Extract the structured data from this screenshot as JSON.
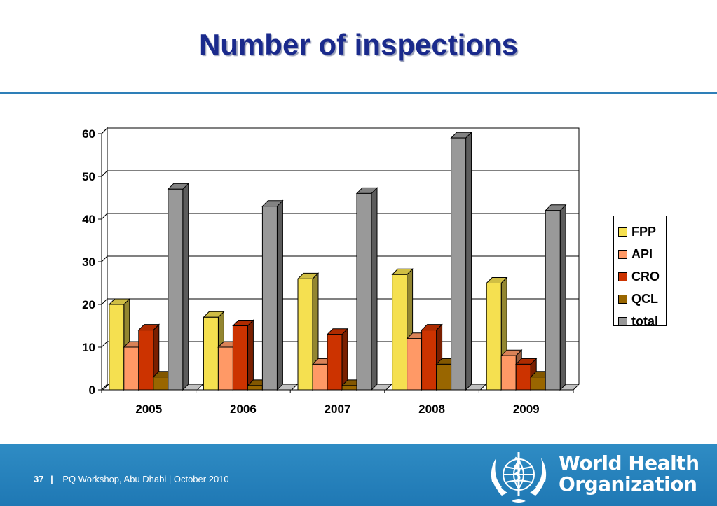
{
  "title": "Number of inspections",
  "chart_data": {
    "type": "bar",
    "categories": [
      "2005",
      "2006",
      "2007",
      "2008",
      "2009"
    ],
    "series": [
      {
        "name": "FPP",
        "values": [
          20,
          17,
          26,
          27,
          25
        ],
        "color": "#f5e050"
      },
      {
        "name": "API",
        "values": [
          10,
          10,
          6,
          12,
          8
        ],
        "color": "#ff9966"
      },
      {
        "name": "CRO",
        "values": [
          14,
          15,
          13,
          14,
          6
        ],
        "color": "#cc3300"
      },
      {
        "name": "QCL",
        "values": [
          3,
          1,
          1,
          6,
          3
        ],
        "color": "#996600"
      },
      {
        "name": "total",
        "values": [
          47,
          43,
          46,
          59,
          42
        ],
        "color": "#999999"
      }
    ],
    "ylim": [
      0,
      60
    ],
    "yticks": [
      0,
      10,
      20,
      30,
      40,
      50,
      60
    ],
    "grid": true,
    "legend_position": "right",
    "style": "3d-column"
  },
  "footer": {
    "page_number": "37",
    "separator": "|",
    "text": "PQ Workshop, Abu Dhabi  |  October 2010"
  },
  "organization": {
    "name_line1": "World Health",
    "name_line2": "Organization"
  },
  "colors": {
    "title": "#1a2a8c",
    "rule": "#2e7fb8",
    "footer_bg": "#1f78b4"
  },
  "icons": {
    "logo": "who-emblem-icon"
  }
}
